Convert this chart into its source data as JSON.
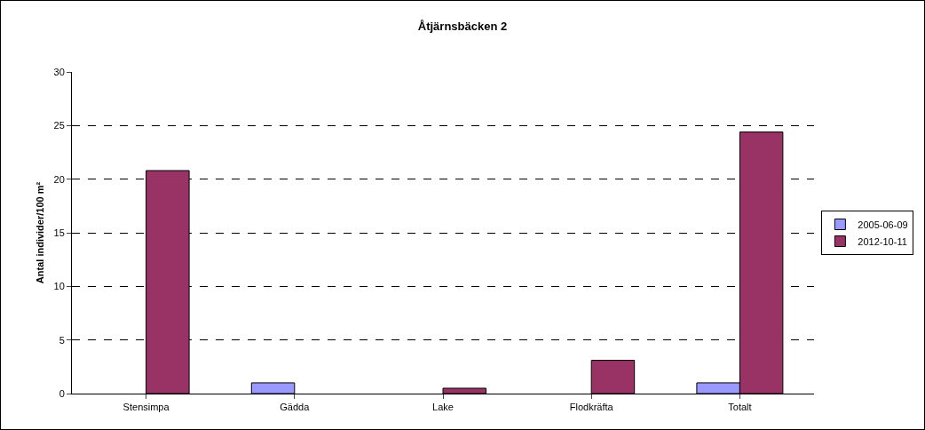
{
  "chart_data": {
    "type": "bar",
    "title": "Åtjärnsbäcken 2",
    "ylabel": "Antal individer/100 m²",
    "categories": [
      "Stensimpa",
      "Gädda",
      "Lake",
      "Flodkräfta",
      "Totalt"
    ],
    "series": [
      {
        "name": "2005-06-09",
        "color": "#9999ff",
        "values": [
          null,
          1.0,
          null,
          null,
          1.0
        ]
      },
      {
        "name": "2012-10-11",
        "color": "#993366",
        "values": [
          20.8,
          null,
          0.5,
          3.1,
          24.4
        ]
      }
    ],
    "ylim": [
      0,
      30
    ],
    "yticks": [
      0,
      5,
      10,
      15,
      20,
      25,
      30
    ],
    "grid": "y",
    "line_style": "dashed",
    "legend": "right"
  }
}
